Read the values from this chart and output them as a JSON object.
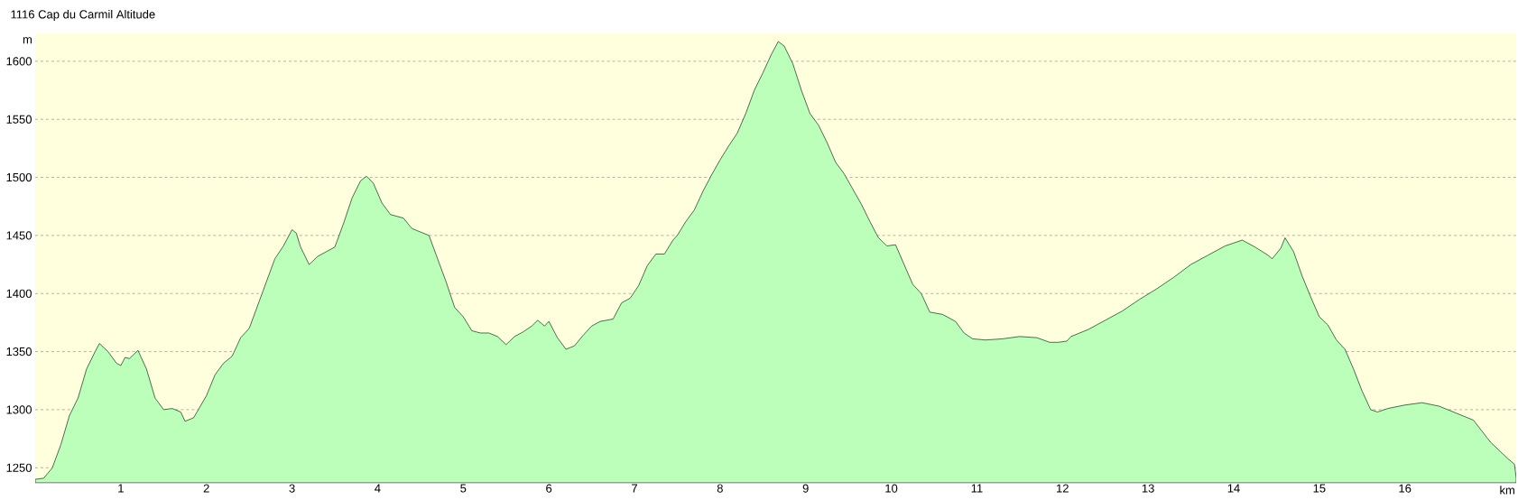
{
  "chart_data": {
    "type": "area",
    "title": "1116 Cap du Carmil Altitude",
    "xlabel": "km",
    "ylabel": "m",
    "color": "#bbffbb",
    "grid": "y",
    "xlim": [
      0,
      17.3
    ],
    "ylim": [
      1237,
      1624
    ],
    "xticks": [
      1,
      2,
      3,
      4,
      5,
      6,
      7,
      8,
      9,
      10,
      11,
      12,
      13,
      14,
      15,
      16
    ],
    "yticks": [
      1250,
      1300,
      1350,
      1400,
      1450,
      1500,
      1550,
      1600
    ],
    "x": [
      0,
      0.1,
      0.2,
      0.3,
      0.4,
      0.5,
      0.6,
      0.7,
      0.75,
      0.85,
      0.95,
      1.0,
      1.05,
      1.1,
      1.2,
      1.3,
      1.4,
      1.5,
      1.6,
      1.7,
      1.75,
      1.85,
      2.0,
      2.1,
      2.2,
      2.3,
      2.4,
      2.5,
      2.6,
      2.7,
      2.8,
      2.9,
      3.0,
      3.05,
      3.1,
      3.2,
      3.3,
      3.4,
      3.5,
      3.6,
      3.7,
      3.8,
      3.87,
      3.95,
      4.05,
      4.15,
      4.3,
      4.4,
      4.5,
      4.6,
      4.7,
      4.8,
      4.9,
      5.0,
      5.1,
      5.2,
      5.3,
      5.4,
      5.5,
      5.6,
      5.7,
      5.8,
      5.87,
      5.95,
      6.0,
      6.1,
      6.2,
      6.3,
      6.4,
      6.5,
      6.6,
      6.75,
      6.85,
      6.95,
      7.05,
      7.15,
      7.25,
      7.35,
      7.45,
      7.5,
      7.6,
      7.7,
      7.8,
      7.9,
      8.0,
      8.1,
      8.2,
      8.3,
      8.4,
      8.5,
      8.6,
      8.68,
      8.75,
      8.85,
      8.95,
      9.05,
      9.15,
      9.25,
      9.35,
      9.45,
      9.55,
      9.65,
      9.75,
      9.85,
      9.95,
      10.05,
      10.15,
      10.25,
      10.35,
      10.45,
      10.6,
      10.75,
      10.85,
      10.95,
      11.1,
      11.3,
      11.5,
      11.7,
      11.85,
      11.95,
      12.05,
      12.1,
      12.3,
      12.5,
      12.7,
      12.9,
      13.1,
      13.3,
      13.5,
      13.7,
      13.9,
      14.1,
      14.25,
      14.4,
      14.45,
      14.55,
      14.6,
      14.7,
      14.8,
      14.9,
      15.0,
      15.1,
      15.2,
      15.3,
      15.4,
      15.5,
      15.6,
      15.68,
      15.8,
      16.0,
      16.2,
      16.4,
      16.6,
      16.8,
      17.0,
      17.2,
      17.28,
      17.3
    ],
    "values": [
      1240,
      1241,
      1250,
      1270,
      1295,
      1310,
      1335,
      1350,
      1357,
      1350,
      1340,
      1338,
      1345,
      1344,
      1351,
      1335,
      1310,
      1300,
      1301,
      1298,
      1290,
      1293,
      1312,
      1330,
      1340,
      1346,
      1362,
      1370,
      1390,
      1410,
      1430,
      1441,
      1455,
      1452,
      1440,
      1425,
      1432,
      1436,
      1440,
      1460,
      1482,
      1497,
      1501,
      1495,
      1478,
      1468,
      1465,
      1456,
      1453,
      1450,
      1430,
      1410,
      1388,
      1380,
      1368,
      1366,
      1366,
      1363,
      1356,
      1363,
      1367,
      1372,
      1377,
      1372,
      1376,
      1362,
      1352,
      1355,
      1364,
      1372,
      1376,
      1378,
      1392,
      1396,
      1407,
      1424,
      1434,
      1434,
      1446,
      1450,
      1462,
      1472,
      1488,
      1502,
      1515,
      1527,
      1538,
      1555,
      1575,
      1590,
      1606,
      1617,
      1613,
      1598,
      1575,
      1555,
      1545,
      1530,
      1513,
      1503,
      1490,
      1477,
      1462,
      1448,
      1441,
      1442,
      1425,
      1408,
      1400,
      1384,
      1382,
      1376,
      1366,
      1361,
      1360,
      1361,
      1363,
      1362,
      1358,
      1358,
      1359,
      1363,
      1369,
      1377,
      1385,
      1395,
      1404,
      1414,
      1425,
      1433,
      1441,
      1446,
      1440,
      1433,
      1430,
      1439,
      1448,
      1436,
      1415,
      1397,
      1380,
      1373,
      1360,
      1352,
      1335,
      1316,
      1300,
      1298,
      1301,
      1304,
      1306,
      1303,
      1297,
      1291,
      1272,
      1258,
      1253,
      1241
    ]
  }
}
